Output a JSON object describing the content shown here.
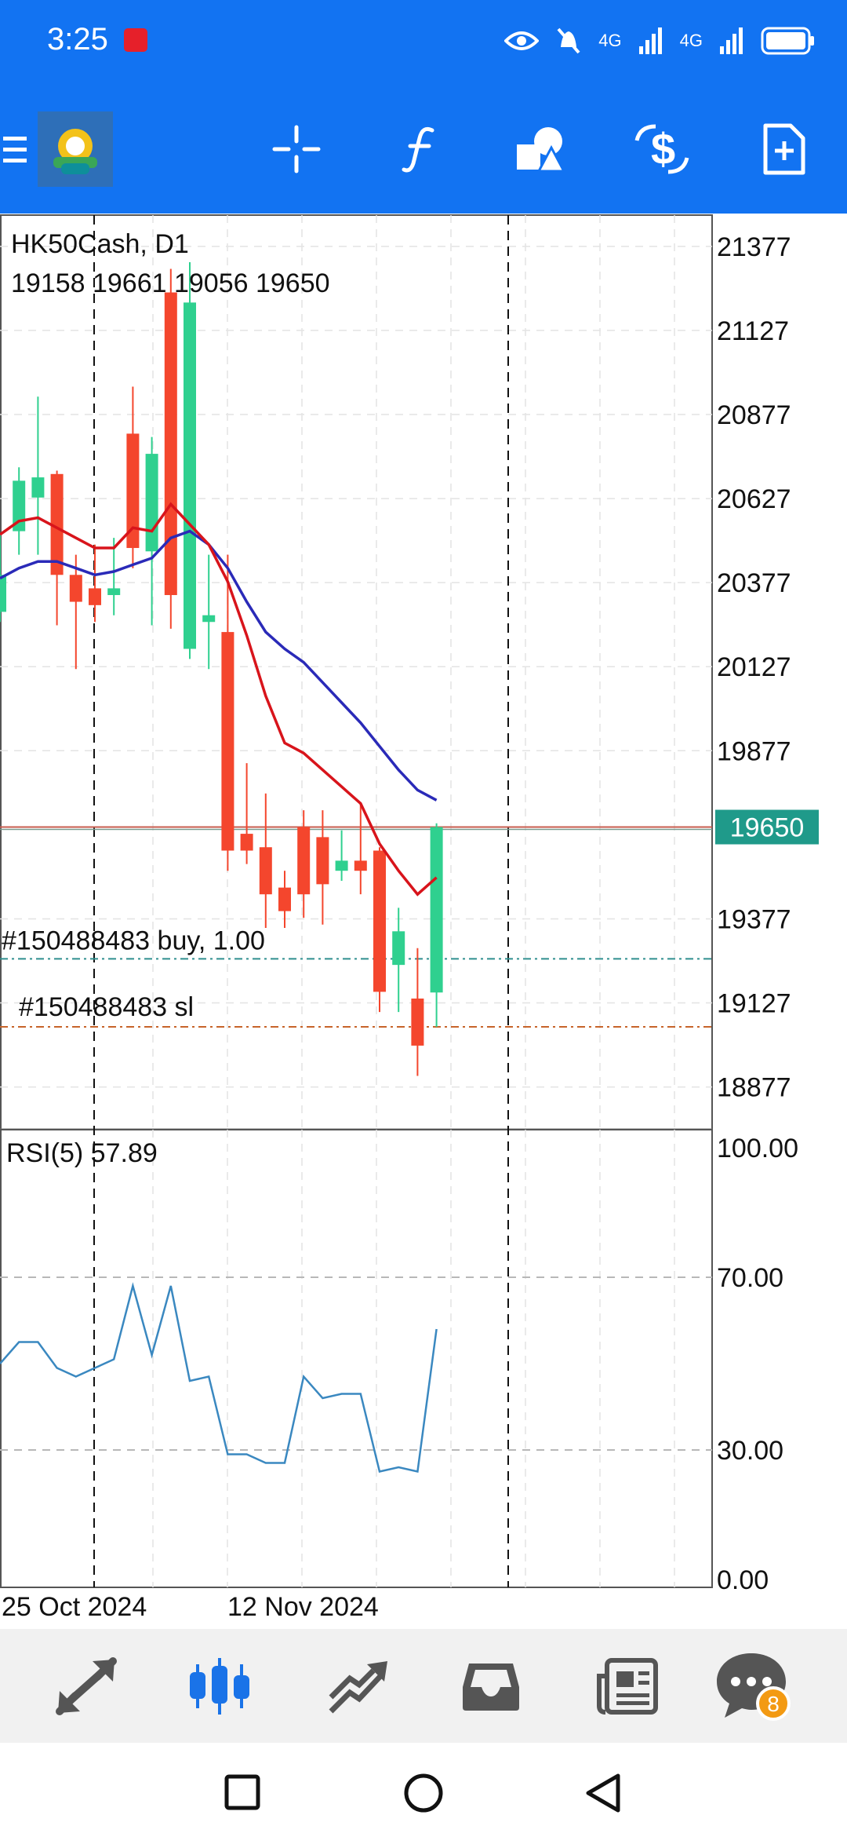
{
  "status_bar": {
    "time": "3:25",
    "network_1": "4G",
    "network_2": "4G"
  },
  "chart": {
    "symbol_timeframe": "HK50Cash, D1",
    "ohlc": "19158 19661 19056 19650",
    "price_labels": [
      "21377",
      "21127",
      "20877",
      "20627",
      "20377",
      "20127",
      "19877",
      "19377",
      "19127",
      "18877"
    ],
    "current_price": "19650",
    "order_line_label": "#150488483 buy, 1.00",
    "sl_line_label": "#150488483 sl",
    "rsi_label": "RSI(5) 57.89",
    "rsi_levels": [
      "100.00",
      "70.00",
      "30.00",
      "0.00"
    ],
    "date_labels": [
      "25 Oct 2024",
      "12 Nov 2024"
    ]
  },
  "chart_data": {
    "type": "candlestick",
    "y_range": [
      18750,
      21470
    ],
    "candles": [
      {
        "o": 20290,
        "c": 20400,
        "h": 20520,
        "l": 20260
      },
      {
        "o": 20530,
        "c": 20680,
        "h": 20720,
        "l": 20460
      },
      {
        "o": 20630,
        "c": 20690,
        "h": 20930,
        "l": 20460
      },
      {
        "o": 20700,
        "c": 20400,
        "h": 20710,
        "l": 20250
      },
      {
        "o": 20400,
        "c": 20320,
        "h": 20460,
        "l": 20120
      },
      {
        "o": 20360,
        "c": 20310,
        "h": 20490,
        "l": 20260
      },
      {
        "o": 20340,
        "c": 20360,
        "h": 20510,
        "l": 20280
      },
      {
        "o": 20820,
        "c": 20480,
        "h": 20960,
        "l": 20420
      },
      {
        "o": 20470,
        "c": 20760,
        "h": 20810,
        "l": 20250
      },
      {
        "o": 21240,
        "c": 20340,
        "h": 21310,
        "l": 20240
      },
      {
        "o": 20180,
        "c": 21210,
        "h": 21330,
        "l": 20150
      },
      {
        "o": 20260,
        "c": 20280,
        "h": 20460,
        "l": 20120
      },
      {
        "o": 20230,
        "c": 19580,
        "h": 20460,
        "l": 19520
      },
      {
        "o": 19630,
        "c": 19580,
        "h": 19840,
        "l": 19540
      },
      {
        "o": 19590,
        "c": 19450,
        "h": 19750,
        "l": 19350
      },
      {
        "o": 19470,
        "c": 19400,
        "h": 19520,
        "l": 19350
      },
      {
        "o": 19650,
        "c": 19450,
        "h": 19700,
        "l": 19380
      },
      {
        "o": 19620,
        "c": 19480,
        "h": 19700,
        "l": 19360
      },
      {
        "o": 19520,
        "c": 19550,
        "h": 19640,
        "l": 19490
      },
      {
        "o": 19550,
        "c": 19520,
        "h": 19720,
        "l": 19450
      },
      {
        "o": 19580,
        "c": 19160,
        "h": 19590,
        "l": 19100
      },
      {
        "o": 19240,
        "c": 19340,
        "h": 19410,
        "l": 19100
      },
      {
        "o": 19140,
        "c": 19000,
        "h": 19290,
        "l": 18910
      },
      {
        "o": 19158,
        "c": 19650,
        "h": 19661,
        "l": 19056
      }
    ],
    "ma_fast": [
      20520,
      20560,
      20570,
      20540,
      20510,
      20480,
      20480,
      20540,
      20530,
      20610,
      20550,
      20490,
      20380,
      20220,
      20040,
      19900,
      19870,
      19820,
      19770,
      19720,
      19600,
      19520,
      19450,
      19500
    ],
    "ma_slow": [
      20390,
      20420,
      20440,
      20440,
      20420,
      20400,
      20410,
      20430,
      20450,
      20510,
      20530,
      20490,
      20420,
      20320,
      20230,
      20180,
      20140,
      20080,
      20020,
      19960,
      19890,
      19820,
      19760,
      19730
    ],
    "rsi": [
      50,
      55,
      55,
      49,
      47,
      49,
      51,
      68,
      52,
      68,
      46,
      47,
      29,
      29,
      27,
      27,
      47,
      42,
      43,
      43,
      25,
      26,
      25,
      58
    ],
    "rsi_range": [
      0,
      100
    ],
    "levels": {
      "current": 19650,
      "buy": 19258,
      "sl": 19056
    }
  }
}
